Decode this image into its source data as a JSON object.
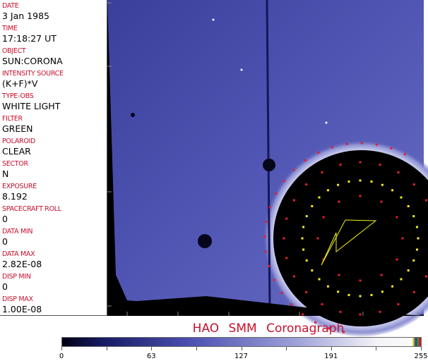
{
  "header_fields": [
    {
      "label": "DATE",
      "value": "3 Jan 1985"
    },
    {
      "label": "TIME",
      "value": "17:18:27 UT"
    },
    {
      "label": "OBJECT",
      "value": "SUN:CORONA"
    },
    {
      "label": "INTENSITY SOURCE",
      "value": "(K+F)*V"
    },
    {
      "label": "TYPE-OBS",
      "value": "WHITE LIGHT"
    },
    {
      "label": "FILTER",
      "value": "GREEN"
    },
    {
      "label": "POLAROID",
      "value": "CLEAR"
    },
    {
      "label": "SECTOR",
      "value": "N"
    },
    {
      "label": "EXPOSURE",
      "value": "8.192"
    },
    {
      "label": "SPACECRAFT ROLL",
      "value": "0"
    },
    {
      "label": "DATA MIN",
      "value": "0"
    },
    {
      "label": "DATA MAX",
      "value": "2.82E-08"
    },
    {
      "label": "DISP MIN",
      "value": "0"
    },
    {
      "label": "DISP MAX",
      "value": "1.00E-08"
    }
  ],
  "title": "HAO SMM Coronagraph",
  "colorbar": {
    "ticks": [
      "0",
      "63",
      "127",
      "191",
      "255"
    ],
    "colormap": "black-blue-white"
  },
  "colors": {
    "label": "#c8102e",
    "sky": "#4a4fb0",
    "overlay_yellow": "#f0f020",
    "overlay_red": "#e02030"
  }
}
